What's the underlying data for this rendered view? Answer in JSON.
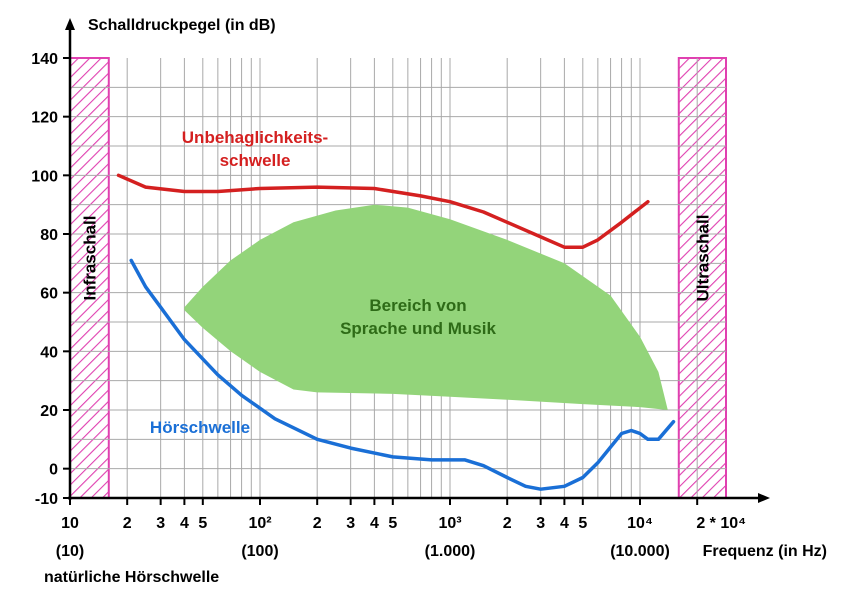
{
  "chart_data": {
    "type": "area",
    "ylabel": "Schalldruckpegel (in dB)",
    "xlabel": "Frequenz (in Hz)",
    "x_scale": "log",
    "xlim": [
      10,
      30000
    ],
    "ylim": [
      -10,
      140
    ],
    "y_ticks": [
      {
        "value": 140,
        "label": "140"
      },
      {
        "value": 120,
        "label": "120"
      },
      {
        "value": 100,
        "label": "100"
      },
      {
        "value": 80,
        "label": "80"
      },
      {
        "value": 60,
        "label": "60"
      },
      {
        "value": 40,
        "label": "40"
      },
      {
        "value": 20,
        "label": "20"
      },
      {
        "value": 0,
        "label": "0"
      },
      {
        "value": -10,
        "label": "-10"
      }
    ],
    "x_ticks": [
      {
        "value": 10,
        "label": "10",
        "sub": "(10)"
      },
      {
        "value": 20,
        "label": "2"
      },
      {
        "value": 30,
        "label": "3"
      },
      {
        "value": 40,
        "label": "4"
      },
      {
        "value": 50,
        "label": "5"
      },
      {
        "value": 100,
        "label": "10²",
        "sub": "(100)"
      },
      {
        "value": 200,
        "label": "2"
      },
      {
        "value": 300,
        "label": "3"
      },
      {
        "value": 400,
        "label": "4"
      },
      {
        "value": 500,
        "label": "5"
      },
      {
        "value": 1000,
        "label": "10³",
        "sub": "(1.000)"
      },
      {
        "value": 2000,
        "label": "2"
      },
      {
        "value": 3000,
        "label": "3"
      },
      {
        "value": 4000,
        "label": "4"
      },
      {
        "value": 5000,
        "label": "5"
      },
      {
        "value": 10000,
        "label": "10⁴",
        "sub": "(10.000)"
      },
      {
        "value": 20000,
        "label": "2 * 10⁴"
      }
    ],
    "grid": true,
    "regions": [
      {
        "name": "Infraschall",
        "x_range": [
          10,
          16
        ]
      },
      {
        "name": "Ultraschall",
        "x_range": [
          16000,
          30000
        ]
      }
    ],
    "series": [
      {
        "name": "Unbehaglichkeits-\nschwelle",
        "label_lines": [
          "Unbehaglichkeits-",
          "schwelle"
        ],
        "color": "#d42020",
        "points": [
          [
            18,
            100
          ],
          [
            25,
            96
          ],
          [
            40,
            94.5
          ],
          [
            60,
            94.5
          ],
          [
            100,
            95.5
          ],
          [
            200,
            96
          ],
          [
            400,
            95.5
          ],
          [
            700,
            93
          ],
          [
            1000,
            91
          ],
          [
            1500,
            87.5
          ],
          [
            2000,
            84
          ],
          [
            3000,
            79
          ],
          [
            4000,
            75.5
          ],
          [
            5000,
            75.5
          ],
          [
            6000,
            78
          ],
          [
            8000,
            84
          ],
          [
            11000,
            91
          ]
        ]
      },
      {
        "name": "Hörschwelle",
        "label_lines": [
          "Hörschwelle"
        ],
        "color": "#1a6fd6",
        "points": [
          [
            21,
            71
          ],
          [
            25,
            62
          ],
          [
            30,
            55
          ],
          [
            40,
            44
          ],
          [
            60,
            32
          ],
          [
            80,
            25
          ],
          [
            120,
            17
          ],
          [
            200,
            10
          ],
          [
            300,
            7
          ],
          [
            500,
            4
          ],
          [
            800,
            3
          ],
          [
            1200,
            3
          ],
          [
            1500,
            1
          ],
          [
            2000,
            -3
          ],
          [
            2500,
            -6
          ],
          [
            3000,
            -7
          ],
          [
            4000,
            -6
          ],
          [
            5000,
            -3
          ],
          [
            6000,
            2
          ],
          [
            8000,
            12
          ],
          [
            9000,
            13
          ],
          [
            10000,
            12
          ],
          [
            11000,
            10
          ],
          [
            12500,
            10
          ],
          [
            15000,
            16
          ]
        ]
      },
      {
        "name": "Bereich von\nSprache und Musik",
        "label_lines": [
          "Bereich von",
          "Sprache und Musik"
        ],
        "color": "#93d47a",
        "polygon": [
          [
            40,
            55
          ],
          [
            50,
            62
          ],
          [
            70,
            71
          ],
          [
            100,
            78
          ],
          [
            150,
            84
          ],
          [
            250,
            88
          ],
          [
            400,
            90
          ],
          [
            600,
            89
          ],
          [
            1000,
            85
          ],
          [
            2000,
            78
          ],
          [
            4000,
            70
          ],
          [
            7000,
            59
          ],
          [
            10000,
            45
          ],
          [
            12500,
            33
          ],
          [
            14000,
            20
          ],
          [
            10000,
            21
          ],
          [
            5000,
            22
          ],
          [
            2000,
            23.5
          ],
          [
            1000,
            24.5
          ],
          [
            500,
            25.5
          ],
          [
            200,
            26
          ],
          [
            150,
            27
          ],
          [
            100,
            33
          ],
          [
            70,
            40
          ],
          [
            50,
            48
          ],
          [
            40,
            54
          ]
        ]
      }
    ],
    "extra_label": "natürliche Hörschwelle"
  }
}
